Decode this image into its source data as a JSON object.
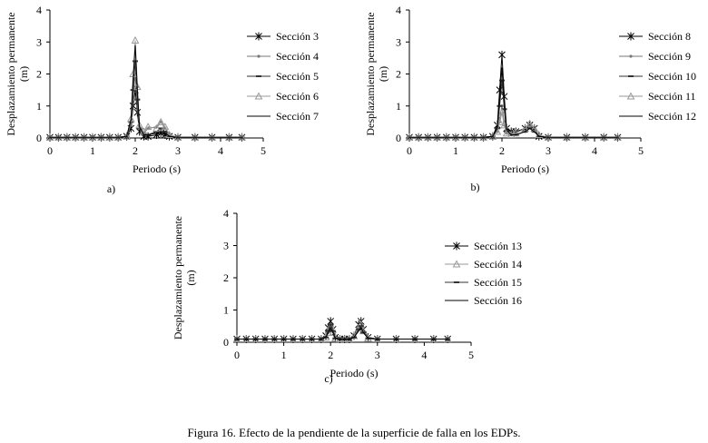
{
  "caption": "Figura 16. Efecto de la pendiente de la superficie de falla en los EDPs.",
  "chart_data": [
    {
      "type": "line",
      "panel_label": "a)",
      "xlabel": "Periodo (s)",
      "ylabel": "Desplazamiento permanente (m)",
      "xlim": [
        0,
        5
      ],
      "ylim": [
        0,
        4
      ],
      "xticks": [
        0,
        1,
        2,
        3,
        4,
        5
      ],
      "yticks": [
        0,
        1,
        2,
        3,
        4
      ],
      "legend_position": "right",
      "grid": false,
      "series": [
        {
          "name": "Sección 3",
          "color": "#000000",
          "marker": "star",
          "x": [
            0,
            0.2,
            0.4,
            0.6,
            0.8,
            1.0,
            1.2,
            1.4,
            1.6,
            1.8,
            1.9,
            1.95,
            2.0,
            2.05,
            2.1,
            2.2,
            2.3,
            2.5,
            2.6,
            2.7,
            2.8,
            3.0,
            3.4,
            3.8,
            4.2,
            4.5
          ],
          "y": [
            0.02,
            0.02,
            0.02,
            0.02,
            0.02,
            0.02,
            0.02,
            0.02,
            0.02,
            0.05,
            0.3,
            1.0,
            1.5,
            0.8,
            0.2,
            0.05,
            0.05,
            0.1,
            0.15,
            0.1,
            0.05,
            0.02,
            0.02,
            0.02,
            0.02,
            0.02
          ]
        },
        {
          "name": "Sección 4",
          "color": "#777777",
          "marker": "dot",
          "x": [
            0,
            0.2,
            0.4,
            0.6,
            0.8,
            1.0,
            1.2,
            1.4,
            1.6,
            1.8,
            1.9,
            1.95,
            2.0,
            2.05,
            2.1,
            2.2,
            2.3,
            2.5,
            2.6,
            2.7,
            2.8,
            3.0,
            3.4,
            3.8,
            4.2,
            4.5
          ],
          "y": [
            0.02,
            0.02,
            0.02,
            0.02,
            0.02,
            0.02,
            0.02,
            0.02,
            0.02,
            0.05,
            0.4,
            1.2,
            2.0,
            1.0,
            0.3,
            0.15,
            0.3,
            0.35,
            0.5,
            0.3,
            0.1,
            0.02,
            0.02,
            0.02,
            0.02,
            0.02
          ]
        },
        {
          "name": "Sección 5",
          "color": "#333333",
          "marker": "dash",
          "x": [
            0,
            0.2,
            0.4,
            0.6,
            0.8,
            1.0,
            1.2,
            1.4,
            1.6,
            1.8,
            1.9,
            1.95,
            2.0,
            2.05,
            2.1,
            2.2,
            2.3,
            2.5,
            2.6,
            2.7,
            2.8,
            3.0,
            3.4,
            3.8,
            4.2,
            4.5
          ],
          "y": [
            0.02,
            0.02,
            0.02,
            0.02,
            0.02,
            0.02,
            0.02,
            0.02,
            0.02,
            0.05,
            0.5,
            1.5,
            2.4,
            1.2,
            0.3,
            0.1,
            0.1,
            0.2,
            0.3,
            0.2,
            0.05,
            0.02,
            0.02,
            0.02,
            0.02,
            0.02
          ]
        },
        {
          "name": "Sección 6",
          "color": "#999999",
          "marker": "triangle",
          "x": [
            0,
            0.2,
            0.4,
            0.6,
            0.8,
            1.0,
            1.2,
            1.4,
            1.6,
            1.8,
            1.9,
            1.95,
            2.0,
            2.05,
            2.1,
            2.2,
            2.3,
            2.5,
            2.6,
            2.7,
            2.8,
            3.0,
            3.4,
            3.8,
            4.2,
            4.5
          ],
          "y": [
            0.02,
            0.02,
            0.02,
            0.02,
            0.02,
            0.02,
            0.02,
            0.02,
            0.02,
            0.05,
            0.6,
            2.0,
            3.05,
            1.6,
            0.4,
            0.2,
            0.35,
            0.3,
            0.5,
            0.35,
            0.1,
            0.02,
            0.02,
            0.02,
            0.02,
            0.02
          ]
        },
        {
          "name": "Sección 7",
          "color": "#000000",
          "marker": "none",
          "x": [
            0,
            0.2,
            0.4,
            0.6,
            0.8,
            1.0,
            1.2,
            1.4,
            1.6,
            1.8,
            1.9,
            1.95,
            2.0,
            2.05,
            2.1,
            2.2,
            2.3,
            2.5,
            2.6,
            2.7,
            2.8,
            3.0,
            3.4,
            3.8,
            4.2,
            4.5
          ],
          "y": [
            0.02,
            0.02,
            0.02,
            0.02,
            0.02,
            0.02,
            0.02,
            0.02,
            0.02,
            0.05,
            0.6,
            1.8,
            2.9,
            1.5,
            0.35,
            0.1,
            0.1,
            0.15,
            0.2,
            0.15,
            0.05,
            0.02,
            0.02,
            0.02,
            0.02,
            0.02
          ]
        }
      ]
    },
    {
      "type": "line",
      "panel_label": "b)",
      "xlabel": "Periodo (s)",
      "ylabel": "Desplazamiento permanente (m)",
      "xlim": [
        0,
        5
      ],
      "ylim": [
        0,
        4
      ],
      "xticks": [
        0,
        1,
        2,
        3,
        4,
        5
      ],
      "yticks": [
        0,
        1,
        2,
        3,
        4
      ],
      "legend_position": "right",
      "grid": false,
      "series": [
        {
          "name": "Sección 8",
          "color": "#000000",
          "marker": "star",
          "x": [
            0,
            0.2,
            0.4,
            0.6,
            0.8,
            1.0,
            1.2,
            1.4,
            1.6,
            1.8,
            1.9,
            1.95,
            2.0,
            2.05,
            2.1,
            2.2,
            2.3,
            2.5,
            2.6,
            2.7,
            2.8,
            3.0,
            3.4,
            3.8,
            4.2,
            4.5
          ],
          "y": [
            0.02,
            0.02,
            0.02,
            0.02,
            0.02,
            0.02,
            0.02,
            0.02,
            0.02,
            0.05,
            0.4,
            1.5,
            2.6,
            1.3,
            0.3,
            0.2,
            0.2,
            0.3,
            0.4,
            0.3,
            0.05,
            0.02,
            0.02,
            0.02,
            0.02,
            0.02
          ]
        },
        {
          "name": "Sección 9",
          "color": "#777777",
          "marker": "dot",
          "x": [
            0,
            0.2,
            0.4,
            0.6,
            0.8,
            1.0,
            1.2,
            1.4,
            1.6,
            1.8,
            1.9,
            1.95,
            2.0,
            2.05,
            2.1,
            2.2,
            2.3,
            2.5,
            2.6,
            2.7,
            2.8,
            3.0,
            3.4,
            3.8,
            4.2,
            4.5
          ],
          "y": [
            0.02,
            0.02,
            0.02,
            0.02,
            0.02,
            0.02,
            0.02,
            0.02,
            0.02,
            0.05,
            0.2,
            0.6,
            1.0,
            0.5,
            0.15,
            0.1,
            0.1,
            0.2,
            0.35,
            0.2,
            0.05,
            0.02,
            0.02,
            0.02,
            0.02,
            0.02
          ]
        },
        {
          "name": "Sección 10",
          "color": "#333333",
          "marker": "dash",
          "x": [
            0,
            0.2,
            0.4,
            0.6,
            0.8,
            1.0,
            1.2,
            1.4,
            1.6,
            1.8,
            1.9,
            1.95,
            2.0,
            2.05,
            2.1,
            2.2,
            2.3,
            2.5,
            2.6,
            2.7,
            2.8,
            3.0,
            3.4,
            3.8,
            4.2,
            4.5
          ],
          "y": [
            0.02,
            0.02,
            0.02,
            0.02,
            0.02,
            0.02,
            0.02,
            0.02,
            0.02,
            0.05,
            0.3,
            1.0,
            1.8,
            0.9,
            0.2,
            0.1,
            0.1,
            0.2,
            0.3,
            0.2,
            0.05,
            0.02,
            0.02,
            0.02,
            0.02,
            0.02
          ]
        },
        {
          "name": "Sección 11",
          "color": "#999999",
          "marker": "triangle",
          "x": [
            0,
            0.2,
            0.4,
            0.6,
            0.8,
            1.0,
            1.2,
            1.4,
            1.6,
            1.8,
            1.9,
            1.95,
            2.0,
            2.05,
            2.1,
            2.2,
            2.3,
            2.5,
            2.6,
            2.7,
            2.8,
            3.0,
            3.4,
            3.8,
            4.2,
            4.5
          ],
          "y": [
            0.02,
            0.02,
            0.02,
            0.02,
            0.02,
            0.02,
            0.02,
            0.02,
            0.02,
            0.05,
            0.2,
            0.5,
            0.8,
            0.4,
            0.15,
            0.1,
            0.15,
            0.3,
            0.45,
            0.3,
            0.1,
            0.02,
            0.02,
            0.02,
            0.02,
            0.02
          ]
        },
        {
          "name": "Sección 12",
          "color": "#000000",
          "marker": "none",
          "x": [
            0,
            0.2,
            0.4,
            0.6,
            0.8,
            1.0,
            1.2,
            1.4,
            1.6,
            1.8,
            1.9,
            1.95,
            2.0,
            2.05,
            2.1,
            2.2,
            2.3,
            2.5,
            2.6,
            2.7,
            2.8,
            3.0,
            3.4,
            3.8,
            4.2,
            4.5
          ],
          "y": [
            0.02,
            0.02,
            0.02,
            0.02,
            0.02,
            0.02,
            0.02,
            0.02,
            0.02,
            0.05,
            0.3,
            1.2,
            2.2,
            1.1,
            0.25,
            0.1,
            0.1,
            0.2,
            0.3,
            0.2,
            0.05,
            0.02,
            0.02,
            0.02,
            0.02,
            0.02
          ]
        }
      ]
    },
    {
      "type": "line",
      "panel_label": "c)",
      "xlabel": "Periodo (s)",
      "ylabel": "Desplazamiento permanente (m)",
      "xlim": [
        0,
        5
      ],
      "ylim": [
        0,
        4
      ],
      "xticks": [
        0,
        1,
        2,
        3,
        4,
        5
      ],
      "yticks": [
        0,
        1,
        2,
        3,
        4
      ],
      "legend_position": "right",
      "grid": false,
      "series": [
        {
          "name": "Sección 13",
          "color": "#000000",
          "marker": "star",
          "x": [
            0,
            0.2,
            0.4,
            0.6,
            0.8,
            1.0,
            1.2,
            1.4,
            1.6,
            1.8,
            1.9,
            1.95,
            2.0,
            2.05,
            2.1,
            2.2,
            2.3,
            2.4,
            2.5,
            2.6,
            2.65,
            2.7,
            2.8,
            3.0,
            3.4,
            3.8,
            4.2,
            4.5
          ],
          "y": [
            0.1,
            0.1,
            0.1,
            0.1,
            0.1,
            0.1,
            0.1,
            0.1,
            0.1,
            0.1,
            0.2,
            0.45,
            0.65,
            0.4,
            0.15,
            0.1,
            0.1,
            0.1,
            0.2,
            0.55,
            0.65,
            0.4,
            0.15,
            0.1,
            0.1,
            0.1,
            0.1,
            0.1
          ]
        },
        {
          "name": "Sección 14",
          "color": "#999999",
          "marker": "triangle",
          "x": [
            0,
            0.2,
            0.4,
            0.6,
            0.8,
            1.0,
            1.2,
            1.4,
            1.6,
            1.8,
            1.9,
            1.95,
            2.0,
            2.05,
            2.1,
            2.2,
            2.3,
            2.4,
            2.5,
            2.6,
            2.65,
            2.7,
            2.8,
            3.0,
            3.4,
            3.8,
            4.2,
            4.5
          ],
          "y": [
            0.1,
            0.1,
            0.1,
            0.1,
            0.1,
            0.1,
            0.1,
            0.1,
            0.1,
            0.1,
            0.15,
            0.3,
            0.5,
            0.3,
            0.12,
            0.1,
            0.1,
            0.1,
            0.2,
            0.45,
            0.55,
            0.35,
            0.12,
            0.1,
            0.1,
            0.1,
            0.1,
            0.1
          ]
        },
        {
          "name": "Sección 15",
          "color": "#333333",
          "marker": "dash",
          "x": [
            0,
            0.2,
            0.4,
            0.6,
            0.8,
            1.0,
            1.2,
            1.4,
            1.6,
            1.8,
            1.9,
            1.95,
            2.0,
            2.05,
            2.1,
            2.2,
            2.3,
            2.4,
            2.5,
            2.6,
            2.65,
            2.7,
            2.8,
            3.0,
            3.4,
            3.8,
            4.2,
            4.5
          ],
          "y": [
            0.1,
            0.1,
            0.1,
            0.1,
            0.1,
            0.1,
            0.1,
            0.1,
            0.1,
            0.1,
            0.15,
            0.35,
            0.55,
            0.35,
            0.12,
            0.1,
            0.1,
            0.1,
            0.15,
            0.4,
            0.5,
            0.3,
            0.12,
            0.1,
            0.1,
            0.1,
            0.1,
            0.1
          ]
        },
        {
          "name": "Sección 16",
          "color": "#000000",
          "marker": "none",
          "x": [
            0,
            0.2,
            0.4,
            0.6,
            0.8,
            1.0,
            1.2,
            1.4,
            1.6,
            1.8,
            1.9,
            1.95,
            2.0,
            2.05,
            2.1,
            2.2,
            2.3,
            2.4,
            2.5,
            2.6,
            2.65,
            2.7,
            2.8,
            3.0,
            3.4,
            3.8,
            4.2,
            4.5
          ],
          "y": [
            0.1,
            0.1,
            0.1,
            0.1,
            0.1,
            0.1,
            0.1,
            0.1,
            0.1,
            0.1,
            0.15,
            0.3,
            0.45,
            0.3,
            0.12,
            0.1,
            0.1,
            0.1,
            0.15,
            0.35,
            0.45,
            0.3,
            0.12,
            0.1,
            0.1,
            0.1,
            0.1,
            0.1
          ]
        }
      ]
    }
  ]
}
